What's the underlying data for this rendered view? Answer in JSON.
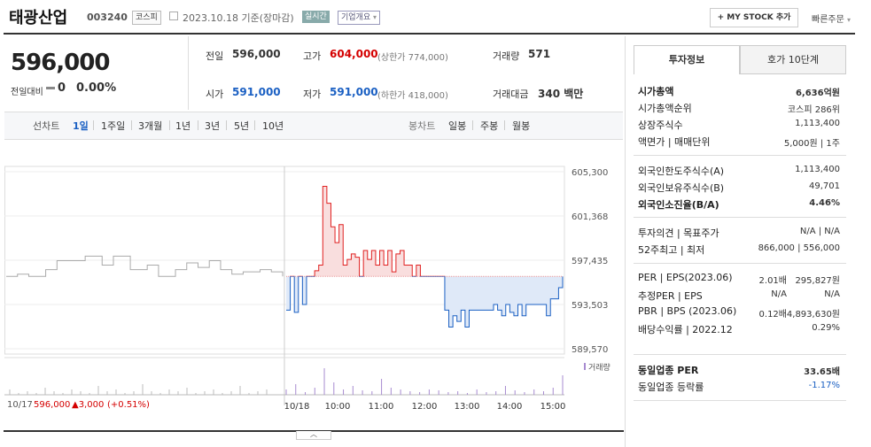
{
  "header": {
    "name": "태광산업",
    "code": "003240",
    "market": "코스피",
    "date": "2023.10.18 기준(장마감)",
    "live": "실시간",
    "company": "기업개요",
    "my_stock": "+ MY STOCK 추가",
    "quick_order": "빠른주문"
  },
  "summary": {
    "price": "596,000",
    "change_label": "전일대비",
    "change_value": "0",
    "change_pct": "0.00%",
    "prev_label": "전일",
    "prev_value": "596,000",
    "high_label": "고가",
    "high_value": "604,000",
    "upper_limit": "(상한가 774,000)",
    "vol_label": "거래량",
    "vol_value": "571",
    "open_label": "시가",
    "open_value": "591,000",
    "low_label": "저가",
    "low_value": "591,000",
    "lower_limit": "(하한가 418,000)",
    "amt_label": "거래대금",
    "amt_value": "340 백만"
  },
  "tabs": {
    "line_label": "선차트",
    "periods": [
      "1일",
      "1주일",
      "3개월",
      "1년",
      "3년",
      "5년",
      "10년"
    ],
    "candle_label": "봉차트",
    "candles": [
      "일봉",
      "주봉",
      "월봉"
    ]
  },
  "chart_data": {
    "type": "line",
    "y_ticks": [
      "605,300",
      "601,368",
      "597,435",
      "593,503",
      "589,570"
    ],
    "ylim": [
      589570,
      605300
    ],
    "x_ticks": [
      "10/18",
      "10:00",
      "11:00",
      "12:00",
      "13:00",
      "14:00",
      "15:00"
    ],
    "base_price": 596000,
    "prev_day_series": [
      596000,
      596000,
      596200,
      596200,
      596000,
      596000,
      596000,
      596600,
      596600,
      597400,
      597400,
      597400,
      597400,
      597400,
      597800,
      597800,
      597800,
      597000,
      597000,
      597800,
      597800,
      597800,
      596600,
      596600,
      596600,
      597000,
      597000,
      596000,
      596000,
      596000,
      596600,
      596600,
      597200,
      597200,
      596800,
      596800,
      597400,
      597400,
      596600,
      596600,
      596200,
      596200,
      596400,
      596400,
      596400,
      596600,
      596600,
      596400,
      596400,
      596000
    ],
    "today_series": [
      593000,
      596000,
      592800,
      596000,
      593500,
      596000,
      596000,
      596500,
      597000,
      604000,
      602500,
      600400,
      599000,
      600600,
      597000,
      597500,
      598000,
      597700,
      596000,
      598300,
      597500,
      598300,
      597000,
      598300,
      597000,
      598300,
      596400,
      598000,
      598300,
      597000,
      597000,
      596000,
      597000,
      596000,
      596000,
      596000,
      596000,
      596000,
      596000,
      593000,
      591500,
      592500,
      592000,
      593000,
      591500,
      593000,
      593000,
      593000,
      593000,
      593000,
      593000,
      593500,
      593000,
      592500,
      593500,
      592800,
      592500,
      593500,
      592500,
      593500,
      593500,
      593500,
      593500,
      593500,
      592500,
      594000,
      594000,
      595000,
      596000
    ],
    "volume_label": "거래량",
    "footer_date": "10/17",
    "footer_price": "596,000",
    "footer_change": "▲3,000",
    "footer_pct": "(+0.51%)"
  },
  "right_panel": {
    "tab_on": "투자정보",
    "tab_off": "호가 10단계",
    "rows1": [
      {
        "label": "시가총액",
        "value": "6,636억원",
        "bold": true
      },
      {
        "label": "시가총액순위",
        "value": "코스피 286위"
      },
      {
        "label": "상장주식수",
        "value": "1,113,400"
      },
      {
        "label": "액면가 | 매매단위",
        "value": "5,000원 | 1주"
      }
    ],
    "rows2": [
      {
        "label": "외국인한도주식수(A)",
        "value": "1,113,400"
      },
      {
        "label": "외국인보유주식수(B)",
        "value": "49,701"
      },
      {
        "label": "외국인소진율(B/A)",
        "value": "4.46%",
        "bold": true
      }
    ],
    "rows3": [
      {
        "label": "투자의견 | 목표주가",
        "value": "N/A | N/A"
      },
      {
        "label": "52주최고 | 최저",
        "value": "866,000 | 556,000"
      }
    ],
    "rows4": [
      {
        "label": "PER | EPS(2023.06)",
        "value1": "2.01배",
        "value2": "295,827원"
      },
      {
        "label": "추정PER | EPS",
        "value1": "N/A",
        "value2": "N/A"
      },
      {
        "label": "PBR | BPS (2023.06)",
        "value1": "0.12배",
        "value2": "4,893,630원"
      },
      {
        "label": "배당수익률 | 2022.12",
        "value1": "",
        "value2": "0.29%"
      }
    ],
    "rows5": [
      {
        "label": "동일업종 PER",
        "value": "33.65배",
        "bold": true
      },
      {
        "label": "동일업종 등락률",
        "value": "-1.17%"
      }
    ]
  }
}
